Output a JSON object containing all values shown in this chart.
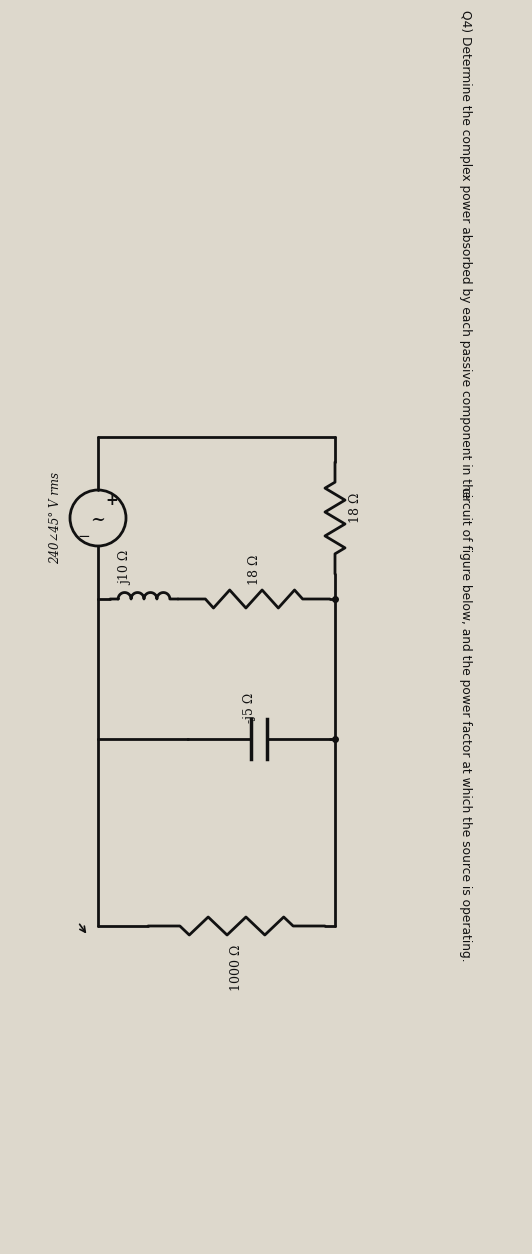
{
  "title_line1": "Q4) Determine the complex power absorbed by each passive component in the",
  "title_line2": "circuit of figure below, and the power factor at which the source is operating.",
  "bg_color": "#ddd8cc",
  "text_color": "#111111",
  "source_label": "240∠45° V rms",
  "R1_label": "18 Ω",
  "R2_label": "18 Ω",
  "L1_label": "j10 Ω",
  "C1_label": "-j5 Ω",
  "R3_label": "1000 Ω",
  "lw": 1.8,
  "src_r": 28
}
